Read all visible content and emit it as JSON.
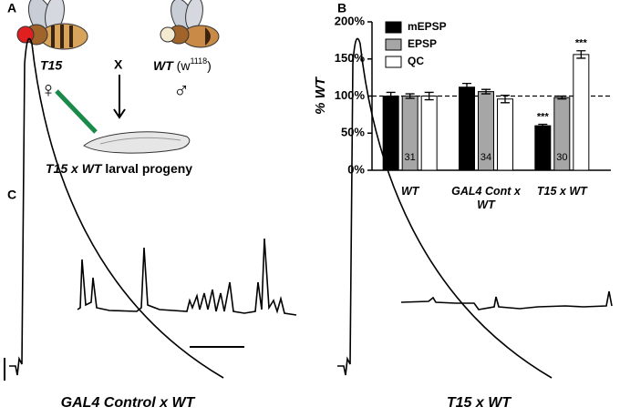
{
  "panel_labels": [
    "A",
    "B",
    "C"
  ],
  "diagram": {
    "female_label": "T15",
    "female_symbol": "♀",
    "cross": "X",
    "male_label": "WT",
    "male_genotype_prefix": "(w",
    "male_genotype_sup": "1118",
    "male_genotype_suffix": ")",
    "male_symbol": "♂",
    "progeny_cross": "T15 x WT",
    "progeny_text": "larval progeny"
  },
  "chart_data": {
    "type": "bar",
    "ylabel": "% WT",
    "categories": [
      "WT",
      "GAL4 Cont x WT",
      "T15 x WT"
    ],
    "series": [
      {
        "name": "mEPSP",
        "color": "#000000",
        "values": [
          100,
          112,
          60
        ],
        "errors": [
          5,
          5,
          2
        ],
        "significance": [
          null,
          null,
          "***"
        ]
      },
      {
        "name": "EPSP",
        "color": "#a6a6a6",
        "values": [
          100,
          106,
          98
        ],
        "errors": [
          3,
          3,
          2
        ],
        "n": [
          31,
          34,
          30
        ]
      },
      {
        "name": "QC",
        "color": "#ffffff",
        "values": [
          100,
          96,
          156
        ],
        "errors": [
          5,
          5,
          5
        ],
        "significance": [
          null,
          null,
          "***"
        ]
      }
    ],
    "ylim": [
      0,
      200
    ],
    "yticks": [
      {
        "value": 0,
        "label": "0%"
      },
      {
        "value": 50,
        "label": "50%"
      },
      {
        "value": 100,
        "label": "100%"
      },
      {
        "value": 150,
        "label": "150%"
      },
      {
        "value": 200,
        "label": "200%"
      }
    ],
    "reference_line": 100,
    "legend": "upper left"
  },
  "traces": {
    "left_label": "GAL4 Control x WT",
    "right_label": "T15 x WT"
  }
}
